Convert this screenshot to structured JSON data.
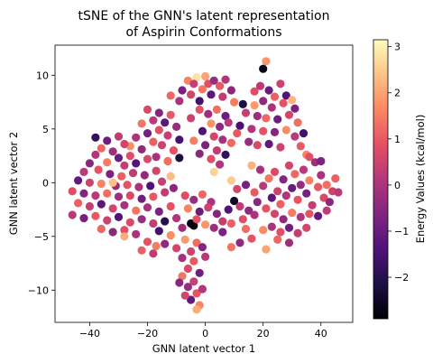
{
  "chart_data": {
    "type": "scatter",
    "title": [
      "tSNE of the GNN's latent representation",
      "of Aspirin Conformations"
    ],
    "xlabel": "GNN latent vector 1",
    "ylabel": "GNN latent vector 2",
    "xlim": [
      -52,
      51
    ],
    "ylim": [
      -13,
      12.8
    ],
    "xticks": [
      -40,
      -20,
      0,
      20,
      40
    ],
    "yticks": [
      -10,
      -5,
      0,
      5,
      10
    ],
    "grid": false,
    "colormap": "magma",
    "colorbar": {
      "label": "Energy Values (kcal/mol)",
      "range": [
        -2.9,
        3.15
      ],
      "ticks": [
        -2,
        -1,
        0,
        1,
        2,
        3
      ]
    },
    "points": [
      [
        21,
        11.3,
        1.8
      ],
      [
        20,
        10.6,
        -2.7
      ],
      [
        -3,
        9.8,
        2.8
      ],
      [
        -6,
        9.5,
        1.6
      ],
      [
        -4,
        9.2,
        0.4
      ],
      [
        0,
        9.9,
        2.0
      ],
      [
        1,
        9.2,
        0.8
      ],
      [
        3,
        9.5,
        -0.3
      ],
      [
        5,
        9.0,
        1.0
      ],
      [
        7,
        9.6,
        0.1
      ],
      [
        -8,
        8.6,
        -0.8
      ],
      [
        -5,
        8.2,
        0.6
      ],
      [
        -1,
        8.7,
        1.4
      ],
      [
        2,
        8.2,
        -1.2
      ],
      [
        6,
        8.0,
        0.3
      ],
      [
        9,
        8.6,
        -0.5
      ],
      [
        -12,
        8.1,
        1.2
      ],
      [
        -9,
        7.6,
        0.0
      ],
      [
        10,
        7.5,
        1.5
      ],
      [
        -2,
        7.6,
        -1.6
      ],
      [
        17,
        8.5,
        0.8
      ],
      [
        19,
        9.0,
        0.2
      ],
      [
        22,
        8.6,
        -1.0
      ],
      [
        24,
        8.0,
        1.1
      ],
      [
        20,
        7.6,
        -0.4
      ],
      [
        26,
        9.2,
        0.5
      ],
      [
        28,
        8.1,
        -1.3
      ],
      [
        17,
        7.2,
        1.9
      ],
      [
        23,
        7.0,
        0.0
      ],
      [
        27,
        7.4,
        0.9
      ],
      [
        30,
        7.7,
        2.2
      ],
      [
        31,
        6.9,
        -0.7
      ],
      [
        14,
        6.5,
        0.4
      ],
      [
        18,
        6.2,
        -0.2
      ],
      [
        21,
        6.0,
        1.2
      ],
      [
        25,
        5.9,
        -0.9
      ],
      [
        29,
        6.3,
        0.6
      ],
      [
        32,
        5.6,
        1.3
      ],
      [
        12,
        5.3,
        -1.5
      ],
      [
        16,
        5.0,
        0.1
      ],
      [
        20,
        4.8,
        0.9
      ],
      [
        24,
        4.7,
        -0.6
      ],
      [
        28,
        4.9,
        1.7
      ],
      [
        31,
        4.3,
        0.2
      ],
      [
        15,
        3.8,
        -0.3
      ],
      [
        18,
        3.5,
        0.7
      ],
      [
        22,
        3.6,
        -1.1
      ],
      [
        26,
        3.3,
        0.5
      ],
      [
        33,
        3.4,
        1.0
      ],
      [
        35,
        2.6,
        1.6
      ],
      [
        -2,
        6.8,
        0.9
      ],
      [
        1,
        6.4,
        -0.2
      ],
      [
        4,
        6.8,
        1.3
      ],
      [
        7,
        6.2,
        -0.9
      ],
      [
        -5,
        6.0,
        0.5
      ],
      [
        2,
        5.5,
        1.8
      ],
      [
        5,
        5.2,
        -0.4
      ],
      [
        8,
        5.6,
        0.2
      ],
      [
        11,
        4.6,
        1.0
      ],
      [
        -1,
        4.8,
        -1.4
      ],
      [
        3,
        4.3,
        0.6
      ],
      [
        6,
        4.0,
        -0.1
      ],
      [
        9,
        3.7,
        1.2
      ],
      [
        0,
        3.5,
        -0.7
      ],
      [
        4,
        3.0,
        0.3
      ],
      [
        -4,
        3.9,
        1.5
      ],
      [
        7,
        2.6,
        -1.8
      ],
      [
        2,
        2.2,
        0.8
      ],
      [
        -2,
        2.7,
        -0.5
      ],
      [
        5,
        1.7,
        0.1
      ],
      [
        -20,
        6.8,
        0.7
      ],
      [
        -16,
        6.5,
        -0.6
      ],
      [
        -12,
        6.3,
        1.0
      ],
      [
        -18,
        5.8,
        0.2
      ],
      [
        -14,
        5.6,
        -1.2
      ],
      [
        -22,
        5.5,
        1.4
      ],
      [
        -10,
        5.2,
        -0.3
      ],
      [
        -16,
        4.9,
        0.8
      ],
      [
        -20,
        4.6,
        -0.8
      ],
      [
        -13,
        4.4,
        0.4
      ],
      [
        -24,
        4.2,
        0.0
      ],
      [
        -18,
        3.8,
        1.1
      ],
      [
        -9,
        4.0,
        -1.5
      ],
      [
        -15,
        3.5,
        0.5
      ],
      [
        -22,
        3.1,
        -0.4
      ],
      [
        -11,
        3.0,
        0.9
      ],
      [
        -26,
        3.4,
        1.7
      ],
      [
        -30,
        4.3,
        0.3
      ],
      [
        -34,
        3.9,
        -0.9
      ],
      [
        -28,
        3.6,
        0.6
      ],
      [
        -36,
        3.2,
        1.2
      ],
      [
        -32,
        2.9,
        -0.2
      ],
      [
        -26,
        2.5,
        0.8
      ],
      [
        -38,
        2.6,
        0.1
      ],
      [
        -30,
        2.3,
        -1.0
      ],
      [
        -34,
        1.9,
        1.5
      ],
      [
        -40,
        1.8,
        -0.5
      ],
      [
        -28,
        1.6,
        0.4
      ],
      [
        -24,
        1.8,
        -1.3
      ],
      [
        -20,
        2.2,
        0.7
      ],
      [
        -17,
        2.4,
        -0.1
      ],
      [
        -13,
        2.0,
        1.3
      ],
      [
        -37,
        1.2,
        0.9
      ],
      [
        -42,
        1.0,
        0.2
      ],
      [
        -33,
        0.8,
        -0.7
      ],
      [
        -29,
        0.6,
        1.1
      ],
      [
        -25,
        0.9,
        0.3
      ],
      [
        -21,
        0.7,
        -0.4
      ],
      [
        -17,
        1.1,
        0.6
      ],
      [
        -44,
        0.2,
        -1.1
      ],
      [
        -40,
        0.0,
        0.5
      ],
      [
        -36,
        -0.1,
        1.6
      ],
      [
        -31,
        -0.3,
        -0.3
      ],
      [
        -27,
        -0.2,
        0.9
      ],
      [
        -23,
        -0.4,
        0.0
      ],
      [
        -19,
        -0.3,
        -1.4
      ],
      [
        -15,
        0.1,
        0.4
      ],
      [
        -46,
        -0.8,
        0.8
      ],
      [
        -42,
        -1.0,
        -0.6
      ],
      [
        -38,
        -1.2,
        0.2
      ],
      [
        -34,
        -1.0,
        1.3
      ],
      [
        -30,
        -1.3,
        -0.2
      ],
      [
        -26,
        -1.2,
        0.7
      ],
      [
        -22,
        -1.5,
        -0.9
      ],
      [
        -18,
        -1.3,
        1.0
      ],
      [
        -14,
        -0.9,
        0.3
      ],
      [
        -11,
        -0.5,
        -0.5
      ],
      [
        -44,
        -1.9,
        1.1
      ],
      [
        -40,
        -2.2,
        0.4
      ],
      [
        -36,
        -2.0,
        -1.2
      ],
      [
        -32,
        -2.4,
        0.6
      ],
      [
        -28,
        -2.1,
        -0.1
      ],
      [
        -24,
        -2.6,
        1.4
      ],
      [
        -20,
        -2.3,
        0.0
      ],
      [
        -16,
        -2.7,
        -0.7
      ],
      [
        -12,
        -2.2,
        0.9
      ],
      [
        -46,
        -3.0,
        0.2
      ],
      [
        -42,
        -3.3,
        -0.8
      ],
      [
        -38,
        -3.1,
        1.0
      ],
      [
        -34,
        -3.5,
        0.5
      ],
      [
        -30,
        -3.2,
        -1.3
      ],
      [
        -26,
        -3.7,
        0.7
      ],
      [
        -22,
        -3.4,
        -0.3
      ],
      [
        -18,
        -3.8,
        0.4
      ],
      [
        -14,
        -3.6,
        -2.0
      ],
      [
        -10,
        -3.3,
        0.1
      ],
      [
        -36,
        -4.3,
        1.2
      ],
      [
        -32,
        -4.6,
        -0.5
      ],
      [
        -28,
        -4.4,
        0.8
      ],
      [
        -24,
        -4.8,
        0.0
      ],
      [
        -16,
        -4.5,
        -1.6
      ],
      [
        -12,
        -4.9,
        1.7
      ],
      [
        -8,
        -4.2,
        -0.2
      ],
      [
        -5,
        -3.8,
        -2.6
      ],
      [
        -4,
        -4.0,
        -2.8
      ],
      [
        -20,
        -5.5,
        0.9
      ],
      [
        -17,
        -5.9,
        1.5
      ],
      [
        -14,
        -5.7,
        -0.4
      ],
      [
        -10,
        -6.1,
        0.6
      ],
      [
        -22,
        -6.3,
        1.1
      ],
      [
        -18,
        -6.6,
        0.3
      ],
      [
        -7,
        -5.3,
        1.9
      ],
      [
        -3,
        -5.6,
        1.3
      ],
      [
        -5,
        -6.4,
        0.5
      ],
      [
        -1,
        -6.0,
        -0.6
      ],
      [
        -8,
        -7.0,
        -0.1
      ],
      [
        -4,
        -7.3,
        1.0
      ],
      [
        0,
        -6.9,
        0.2
      ],
      [
        -6,
        -8.0,
        0.7
      ],
      [
        -2,
        -8.4,
        -0.9
      ],
      [
        -8,
        -8.7,
        1.4
      ],
      [
        -4,
        -9.2,
        0.4
      ],
      [
        -6,
        -9.7,
        -0.3
      ],
      [
        -3,
        -10.3,
        0.9
      ],
      [
        -5,
        -10.9,
        -1.1
      ],
      [
        -2,
        -11.4,
        1.6
      ],
      [
        -3,
        -11.8,
        2.1
      ],
      [
        -1,
        -9.9,
        0.1
      ],
      [
        -7,
        -10.5,
        0.6
      ],
      [
        -9,
        -9.3,
        -0.5
      ],
      [
        -7,
        -1.2,
        0.8
      ],
      [
        -4,
        -1.6,
        -0.3
      ],
      [
        -1,
        -1.1,
        1.2
      ],
      [
        2,
        -1.8,
        0.0
      ],
      [
        -6,
        -2.4,
        1.6
      ],
      [
        -2,
        -2.7,
        -1.0
      ],
      [
        1,
        -2.3,
        0.5
      ],
      [
        4,
        -2.9,
        -0.6
      ],
      [
        -3,
        -3.4,
        0.9
      ],
      [
        0,
        -3.9,
        1.8
      ],
      [
        3,
        -4.2,
        -0.2
      ],
      [
        6,
        -3.6,
        0.4
      ],
      [
        8,
        -2.5,
        -1.3
      ],
      [
        10,
        -1.7,
        -2.5
      ],
      [
        12,
        -2.2,
        0.3
      ],
      [
        9,
        -3.8,
        1.1
      ],
      [
        6,
        -4.6,
        -0.7
      ],
      [
        13,
        -3.4,
        0.8
      ],
      [
        15,
        -2.6,
        -0.4
      ],
      [
        14,
        -4.3,
        1.3
      ],
      [
        17,
        -3.0,
        0.0
      ],
      [
        11,
        -0.6,
        0.6
      ],
      [
        14,
        -0.2,
        -0.8
      ],
      [
        17,
        -0.9,
        1.0
      ],
      [
        20,
        -0.3,
        0.2
      ],
      [
        18,
        -1.8,
        -0.5
      ],
      [
        21,
        -2.4,
        0.9
      ],
      [
        23,
        -1.4,
        -1.2
      ],
      [
        25,
        -0.8,
        0.5
      ],
      [
        22,
        0.4,
        1.4
      ],
      [
        19,
        1.2,
        -0.1
      ],
      [
        24,
        1.0,
        0.7
      ],
      [
        27,
        0.3,
        -0.6
      ],
      [
        26,
        -2.0,
        1.1
      ],
      [
        28,
        -1.2,
        0.1
      ],
      [
        30,
        -0.5,
        -1.0
      ],
      [
        29,
        1.6,
        0.6
      ],
      [
        31,
        0.8,
        1.2
      ],
      [
        33,
        -0.2,
        -0.3
      ],
      [
        32,
        -1.6,
        0.9
      ],
      [
        34,
        1.2,
        0.2
      ],
      [
        36,
        0.2,
        1.6
      ],
      [
        35,
        -1.0,
        -0.8
      ],
      [
        37,
        -2.1,
        0.4
      ],
      [
        38,
        1.9,
        -0.2
      ],
      [
        39,
        -0.4,
        1.0
      ],
      [
        40,
        0.7,
        0.0
      ],
      [
        41,
        -1.4,
        0.7
      ],
      [
        42,
        -0.2,
        1.3
      ],
      [
        43,
        -1.8,
        -0.5
      ],
      [
        44,
        -0.8,
        0.5
      ],
      [
        45,
        0.4,
        1.1
      ],
      [
        46,
        -0.9,
        0.2
      ],
      [
        36,
        2.4,
        0.8
      ],
      [
        40,
        2.0,
        -0.7
      ],
      [
        24,
        -2.9,
        0.6
      ],
      [
        27,
        -3.4,
        -0.4
      ],
      [
        30,
        -2.8,
        1.5
      ],
      [
        33,
        -3.2,
        0.1
      ],
      [
        36,
        -2.9,
        0.9
      ],
      [
        39,
        -3.1,
        -1.1
      ],
      [
        42,
        -2.6,
        0.3
      ],
      [
        20,
        -4.4,
        1.7
      ],
      [
        23,
        -4.1,
        0.0
      ],
      [
        26,
        -4.6,
        0.8
      ],
      [
        29,
        -4.2,
        -0.9
      ],
      [
        32,
        -4.7,
        0.4
      ],
      [
        21,
        -6.2,
        2.0
      ],
      [
        25,
        -5.3,
        1.2
      ],
      [
        29,
        -5.6,
        -0.2
      ],
      [
        35,
        -4.2,
        0.6
      ],
      [
        16,
        -5.2,
        0.9
      ],
      [
        12,
        -5.6,
        -0.4
      ],
      [
        9,
        -6.0,
        1.4
      ],
      [
        -32,
        0.0,
        2.4
      ],
      [
        -12,
        0.6,
        2.3
      ],
      [
        9,
        0.2,
        2.5
      ],
      [
        -38,
        4.2,
        -1.8
      ],
      [
        -9,
        2.3,
        -2.2
      ],
      [
        16,
        1.6,
        2.2
      ],
      [
        13,
        7.3,
        -2.1
      ],
      [
        3,
        1.0,
        2.6
      ],
      [
        34,
        4.6,
        -1.6
      ],
      [
        -28,
        -5.0,
        2.1
      ]
    ]
  }
}
